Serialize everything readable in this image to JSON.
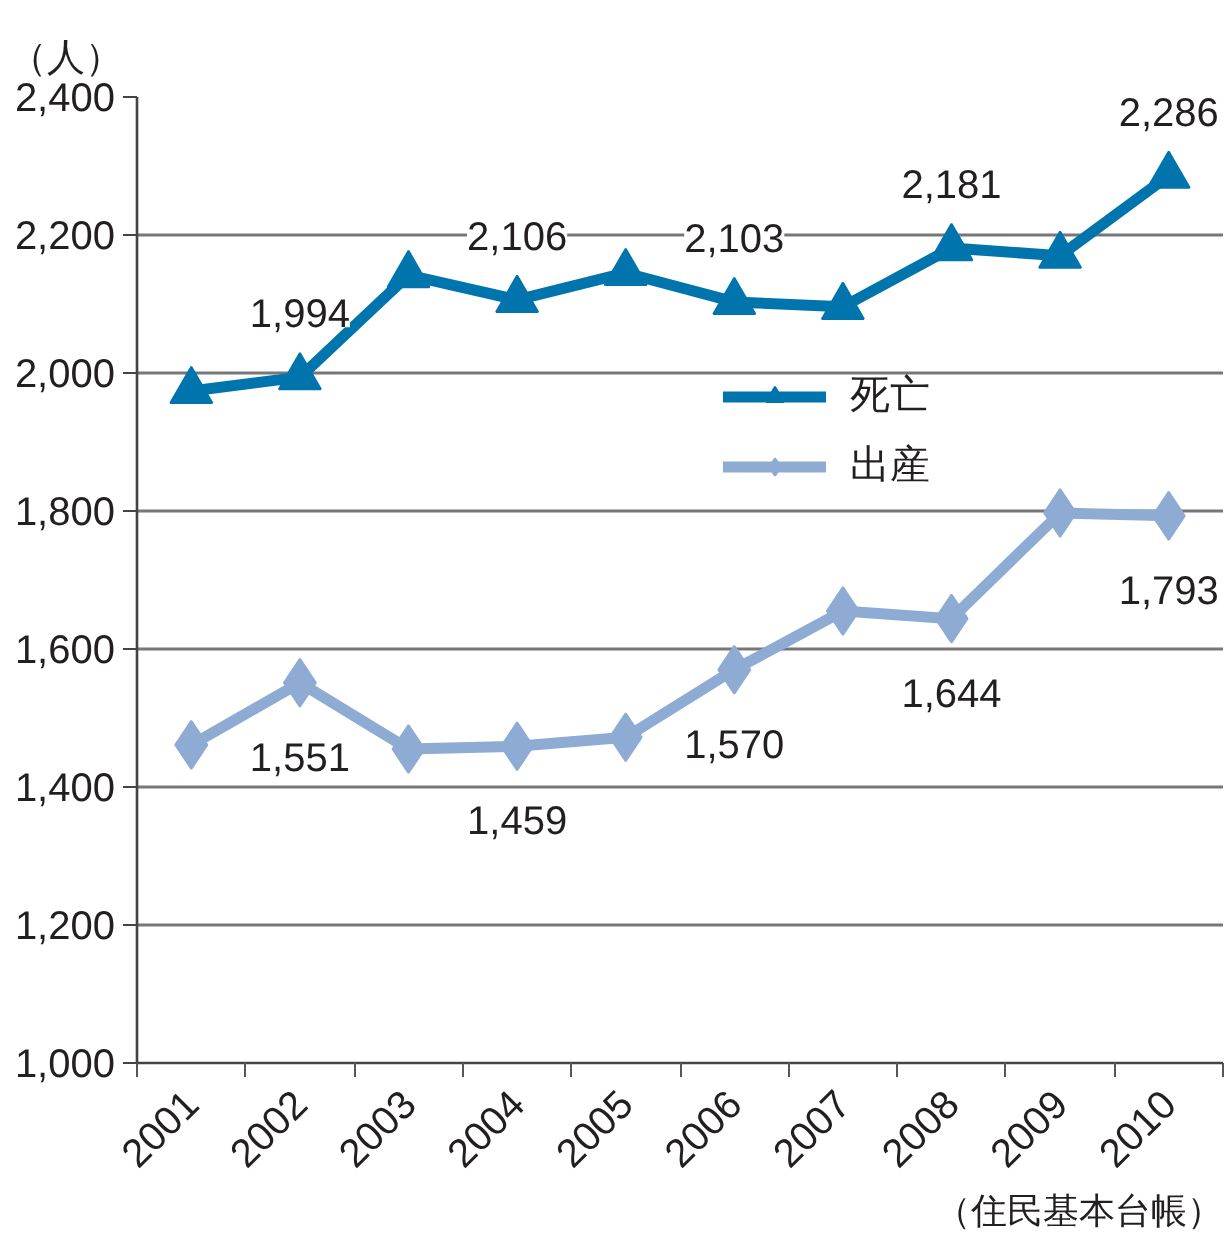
{
  "chart_data": {
    "type": "line",
    "ylabel": "（人）",
    "annotations": [
      "（住民基本台帳）"
    ],
    "categories": [
      "2001",
      "2002",
      "2003",
      "2004",
      "2005",
      "2006",
      "2007",
      "2008",
      "2009",
      "2010"
    ],
    "series": [
      {
        "name": "死亡",
        "color": "#0075ad",
        "marker": "triangle",
        "values": [
          1974,
          1994,
          2142,
          2106,
          2145,
          2103,
          2096,
          2181,
          2170,
          2286
        ],
        "value_labels": [
          null,
          "1,994",
          null,
          "2,106",
          null,
          "2,103",
          null,
          "2,181",
          null,
          "2,286"
        ]
      },
      {
        "name": "出産",
        "color": "#8eabd4",
        "marker": "diamond",
        "values": [
          1461,
          1551,
          1455,
          1459,
          1472,
          1570,
          1655,
          1644,
          1797,
          1793
        ],
        "value_labels": [
          null,
          "1,551",
          null,
          "1,459",
          null,
          "1,570",
          null,
          "1,644",
          null,
          "1,793"
        ]
      }
    ],
    "ylim": [
      1000,
      2400
    ],
    "yticks": [
      {
        "value": 1000,
        "label": "1,000"
      },
      {
        "value": 1200,
        "label": "1,200"
      },
      {
        "value": 1400,
        "label": "1,400"
      },
      {
        "value": 1600,
        "label": "1,600"
      },
      {
        "value": 1800,
        "label": "1,800"
      },
      {
        "value": 2000,
        "label": "2,000"
      },
      {
        "value": 2200,
        "label": "2,200"
      },
      {
        "value": 2400,
        "label": "2,400"
      }
    ],
    "grid": "y",
    "legend": "center"
  }
}
